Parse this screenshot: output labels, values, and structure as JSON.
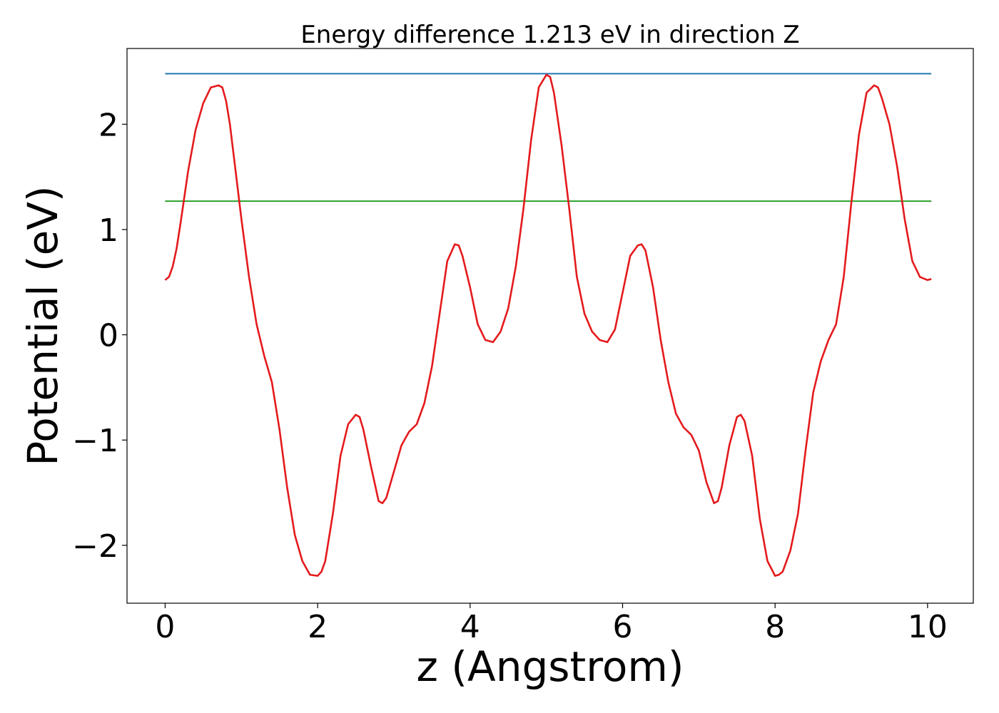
{
  "chart_data": {
    "type": "line",
    "title": "Energy difference 1.213 eV in direction Z",
    "xlabel": "z (Angstrom)",
    "ylabel": "Potential (eV)",
    "xlim": [
      -0.5,
      10.6
    ],
    "ylim": [
      -2.55,
      2.72
    ],
    "x_ticks": [
      0,
      2,
      4,
      6,
      8,
      10
    ],
    "x_tick_labels": [
      "0",
      "2",
      "4",
      "6",
      "8",
      "10"
    ],
    "y_ticks": [
      -2,
      -1,
      0,
      1,
      2
    ],
    "y_tick_labels": [
      "−2",
      "−1",
      "0",
      "1",
      "2"
    ],
    "grid": false,
    "series": [
      {
        "color": "#1f77b4",
        "x": [
          0,
          10.05
        ],
        "y": [
          2.48,
          2.48
        ]
      },
      {
        "color": "#2ca02c",
        "x": [
          0,
          10.05
        ],
        "y": [
          1.27,
          1.27
        ]
      },
      {
        "color": "#e41a1c",
        "x": [
          0,
          0.05,
          0.1,
          0.15,
          0.2,
          0.3,
          0.4,
          0.5,
          0.6,
          0.7,
          0.75,
          0.8,
          0.85,
          0.9,
          1.0,
          1.1,
          1.2,
          1.3,
          1.4,
          1.5,
          1.6,
          1.7,
          1.8,
          1.9,
          2.0,
          2.05,
          2.1,
          2.2,
          2.3,
          2.4,
          2.5,
          2.55,
          2.6,
          2.7,
          2.8,
          2.85,
          2.9,
          3.0,
          3.1,
          3.2,
          3.3,
          3.4,
          3.5,
          3.6,
          3.7,
          3.8,
          3.85,
          3.9,
          4.0,
          4.1,
          4.2,
          4.3,
          4.4,
          4.5,
          4.6,
          4.7,
          4.8,
          4.9,
          5.0,
          5.05,
          5.1,
          5.2,
          5.3,
          5.4,
          5.5,
          5.6,
          5.7,
          5.8,
          5.9,
          6.0,
          6.1,
          6.2,
          6.25,
          6.3,
          6.4,
          6.5,
          6.6,
          6.7,
          6.8,
          6.9,
          7.0,
          7.1,
          7.2,
          7.25,
          7.3,
          7.4,
          7.5,
          7.55,
          7.6,
          7.7,
          7.8,
          7.9,
          8.0,
          8.05,
          8.1,
          8.2,
          8.3,
          8.4,
          8.5,
          8.6,
          8.7,
          8.8,
          8.9,
          9.0,
          9.1,
          9.2,
          9.3,
          9.35,
          9.4,
          9.5,
          9.6,
          9.7,
          9.8,
          9.9,
          10.0,
          10.05
        ],
        "y": [
          0.52,
          0.55,
          0.65,
          0.82,
          1.05,
          1.55,
          1.95,
          2.2,
          2.35,
          2.37,
          2.35,
          2.22,
          2.0,
          1.7,
          1.1,
          0.55,
          0.1,
          -0.2,
          -0.45,
          -0.9,
          -1.45,
          -1.9,
          -2.15,
          -2.28,
          -2.29,
          -2.25,
          -2.15,
          -1.7,
          -1.15,
          -0.85,
          -0.76,
          -0.78,
          -0.9,
          -1.25,
          -1.58,
          -1.6,
          -1.55,
          -1.3,
          -1.05,
          -0.92,
          -0.85,
          -0.65,
          -0.3,
          0.2,
          0.7,
          0.86,
          0.85,
          0.75,
          0.45,
          0.1,
          -0.05,
          -0.07,
          0.03,
          0.25,
          0.65,
          1.2,
          1.85,
          2.35,
          2.47,
          2.45,
          2.3,
          1.8,
          1.2,
          0.55,
          0.2,
          0.03,
          -0.05,
          -0.07,
          0.05,
          0.4,
          0.75,
          0.85,
          0.86,
          0.8,
          0.45,
          -0.05,
          -0.45,
          -0.75,
          -0.88,
          -0.95,
          -1.1,
          -1.4,
          -1.6,
          -1.58,
          -1.45,
          -1.05,
          -0.78,
          -0.76,
          -0.82,
          -1.15,
          -1.75,
          -2.15,
          -2.29,
          -2.28,
          -2.25,
          -2.05,
          -1.7,
          -1.1,
          -0.55,
          -0.25,
          -0.05,
          0.1,
          0.55,
          1.25,
          1.9,
          2.3,
          2.37,
          2.35,
          2.25,
          2.0,
          1.6,
          1.1,
          0.7,
          0.55,
          0.52,
          0.53
        ]
      }
    ]
  }
}
